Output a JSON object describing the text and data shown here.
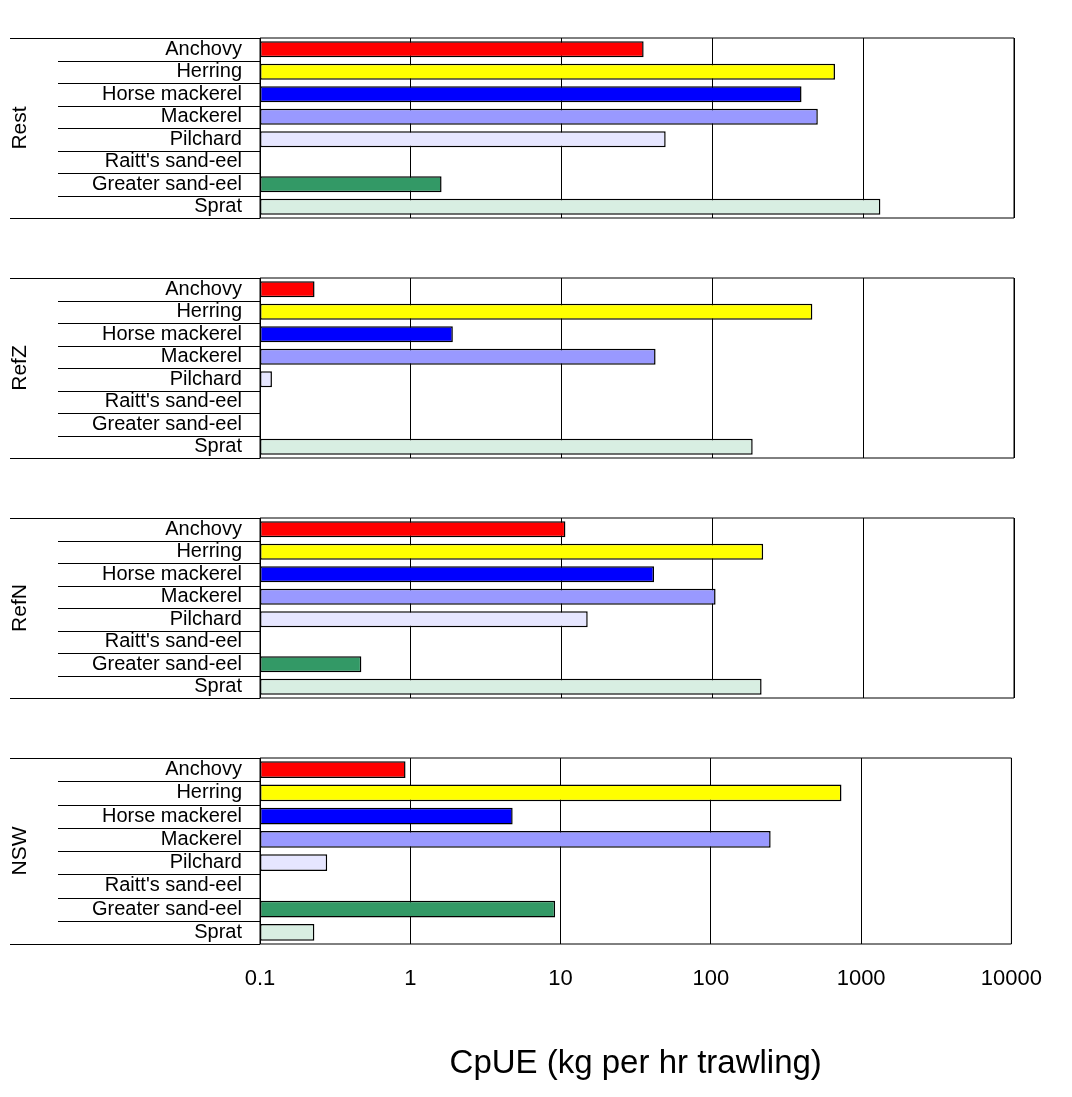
{
  "chart_data": [
    {
      "type": "bar",
      "orientation": "horizontal",
      "ylabel": "Rest",
      "categories": [
        "Anchovy",
        "Herring",
        "Horse mackerel",
        "Mackerel",
        "Pilchard",
        "Raitt's sand-eel",
        "Greater sand-eel",
        "Sprat"
      ],
      "values": [
        35,
        650,
        390,
        500,
        49,
        null,
        1.6,
        1300
      ],
      "colors": [
        "#ff0000",
        "#ffff00",
        "#0000ff",
        "#9999ff",
        "#e6e6ff",
        "#ffffff",
        "#339966",
        "#d8eee2"
      ],
      "xlim": [
        0.1,
        10000
      ],
      "xticks": [
        0.1,
        1,
        10,
        100,
        1000,
        10000
      ],
      "log": "x",
      "grid": "x",
      "tick_labels": "y"
    },
    {
      "type": "bar",
      "orientation": "horizontal",
      "ylabel": "RefZ",
      "categories": [
        "Anchovy",
        "Herring",
        "Horse mackerel",
        "Mackerel",
        "Pilchard",
        "Raitt's sand-eel",
        "Greater sand-eel",
        "Sprat"
      ],
      "values": [
        0.23,
        460,
        1.9,
        42,
        0.12,
        null,
        null,
        185
      ],
      "colors": [
        "#ff0000",
        "#ffff00",
        "#0000ff",
        "#9999ff",
        "#e6e6ff",
        "#ffffff",
        "#339966",
        "#d8eee2"
      ],
      "xlim": [
        0.1,
        10000
      ],
      "xticks": [
        0.1,
        1,
        10,
        100,
        1000,
        10000
      ],
      "log": "x",
      "grid": "x",
      "tick_labels": "y"
    },
    {
      "type": "bar",
      "orientation": "horizontal",
      "ylabel": "RefN",
      "categories": [
        "Anchovy",
        "Herring",
        "Horse mackerel",
        "Mackerel",
        "Pilchard",
        "Raitt's sand-eel",
        "Greater sand-eel",
        "Sprat"
      ],
      "values": [
        10.6,
        217,
        41,
        105,
        14.9,
        null,
        0.47,
        212
      ],
      "colors": [
        "#ff0000",
        "#ffff00",
        "#0000ff",
        "#9999ff",
        "#e6e6ff",
        "#ffffff",
        "#339966",
        "#d8eee2"
      ],
      "xlim": [
        0.1,
        10000
      ],
      "xticks": [
        0.1,
        1,
        10,
        100,
        1000,
        10000
      ],
      "log": "x",
      "grid": "x",
      "tick_labels": "y"
    },
    {
      "type": "bar",
      "orientation": "horizontal",
      "ylabel": "NSW",
      "xlabel": "CpUE (kg per hr trawling)",
      "categories": [
        "Anchovy",
        "Herring",
        "Horse mackerel",
        "Mackerel",
        "Pilchard",
        "Raitt's sand-eel",
        "Greater sand-eel",
        "Sprat"
      ],
      "values": [
        0.93,
        740,
        4.8,
        250,
        0.28,
        null,
        9.2,
        0.23
      ],
      "colors": [
        "#ff0000",
        "#ffff00",
        "#0000ff",
        "#9999ff",
        "#e6e6ff",
        "#ffffff",
        "#339966",
        "#d8eee2"
      ],
      "xlim": [
        0.1,
        10000
      ],
      "xticks": [
        0.1,
        1,
        10,
        100,
        1000,
        10000
      ],
      "log": "x",
      "grid": "x"
    }
  ]
}
